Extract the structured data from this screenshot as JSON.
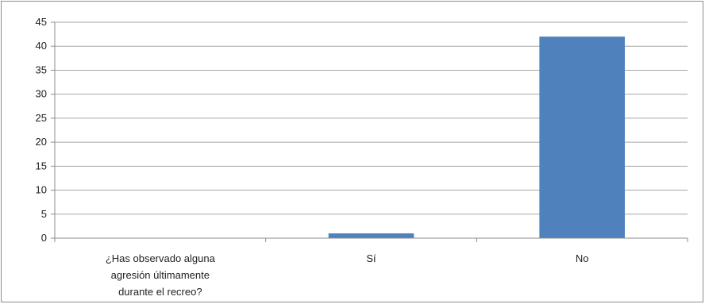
{
  "chart_data": {
    "type": "bar",
    "title": "",
    "xlabel": "",
    "ylabel": "",
    "ylim": [
      0,
      45
    ],
    "yticks": [
      0,
      5,
      10,
      15,
      20,
      25,
      30,
      35,
      40,
      45
    ],
    "grid": true,
    "legend": "none",
    "categories": [
      "¿Has observado alguna agresión últimamente durante el recreo?",
      "Sí",
      "No"
    ],
    "category_label_lines": [
      [
        "¿Has observado alguna",
        "agresión últimamente",
        "durante el recreo?"
      ],
      [
        "Sí"
      ],
      [
        "No"
      ]
    ],
    "values": [
      0,
      1,
      42
    ],
    "bar_color": "#4f81bd"
  }
}
